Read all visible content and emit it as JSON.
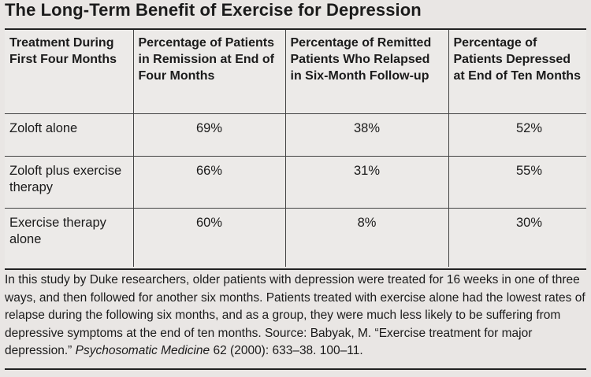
{
  "title": "The Long-Term Benefit of Exercise for Depression",
  "table": {
    "headers": [
      "Treatment During First Four Months",
      "Percentage of Patients in Remission at End of Four Months",
      "Percentage of Remitted Patients Who Relapsed in Six-Month Follow-up",
      "Percentage of Patients Depressed at End of Ten Months"
    ],
    "rows": [
      {
        "treatment": "Zoloft alone",
        "remission": "69%",
        "relapsed": "38%",
        "depressed": "52%"
      },
      {
        "treatment": "Zoloft plus exercise therapy",
        "remission": "66%",
        "relapsed": "31%",
        "depressed": "55%"
      },
      {
        "treatment": "Exercise therapy alone",
        "remission": "60%",
        "relapsed": "8%",
        "depressed": "30%"
      }
    ]
  },
  "caption": {
    "text": "In this study by Duke researchers, older patients with depression were treated for 16 weeks in one of three ways, and then followed for another six months. Patients treated with exercise alone had the lowest rates of relapse during the following six months, and as a group, they were much less likely to be suffering from depressive symptoms at the end of ten months. Source: Babyak, M. “Exercise treatment for major depression.”",
    "journal": "Psychosomatic Medicine",
    "citation_tail": " 62 (2000): 633–38. 100–11."
  }
}
